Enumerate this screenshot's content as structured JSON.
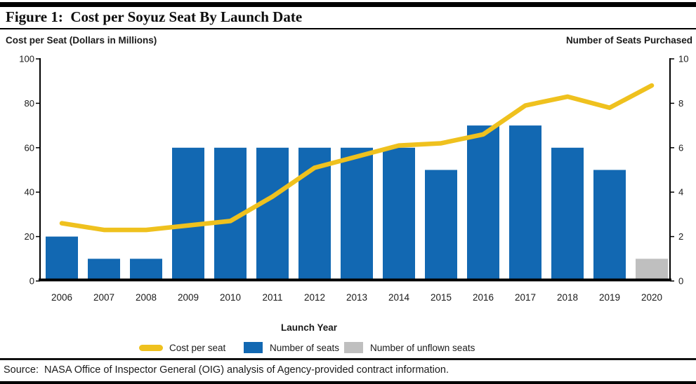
{
  "figure_title": "Figure 1:  Cost per Soyuz Seat By Launch Date",
  "source_note": "Source:  NASA Office of Inspector General (OIG) analysis of Agency-provided contract information.",
  "chart_data": {
    "type": "combo-bar-line",
    "title": "Figure 1: Cost per Soyuz Seat By Launch Date",
    "categories": [
      "2006",
      "2007",
      "2008",
      "2009",
      "2010",
      "2011",
      "2012",
      "2013",
      "2014",
      "2015",
      "2016",
      "2017",
      "2018",
      "2019",
      "2020"
    ],
    "series": [
      {
        "name": "Cost per seat",
        "type": "line",
        "axis": "left",
        "color": "#EFC11E",
        "values": [
          26,
          23,
          23,
          25,
          27,
          38,
          51,
          56,
          61,
          62,
          66,
          79,
          83,
          78,
          88
        ]
      },
      {
        "name": "Number of seats",
        "type": "bar",
        "axis": "right",
        "color": "#1268B2",
        "values": [
          2,
          1,
          1,
          6,
          6,
          6,
          6,
          6,
          6,
          5,
          7,
          7,
          6,
          5,
          0
        ]
      },
      {
        "name": "Number of unflown seats",
        "type": "bar",
        "axis": "right",
        "color": "#BFBFBF",
        "values": [
          0,
          0,
          0,
          0,
          0,
          0,
          0,
          0,
          0,
          0,
          0,
          0,
          0,
          0,
          1
        ]
      }
    ],
    "xlabel": "Launch Year",
    "left_axis": {
      "label": "Cost per Seat (Dollars in Millions)",
      "range": [
        0,
        100
      ],
      "ticks": [
        0,
        20,
        40,
        60,
        80,
        100
      ]
    },
    "right_axis": {
      "label": "Number of Seats Purchased",
      "range": [
        0,
        10
      ],
      "ticks": [
        0,
        2,
        4,
        6,
        8,
        10
      ]
    },
    "legend": [
      "Cost per seat",
      "Number of seats",
      "Number of unflown seats"
    ],
    "legend_position": "bottom",
    "grid": false
  }
}
